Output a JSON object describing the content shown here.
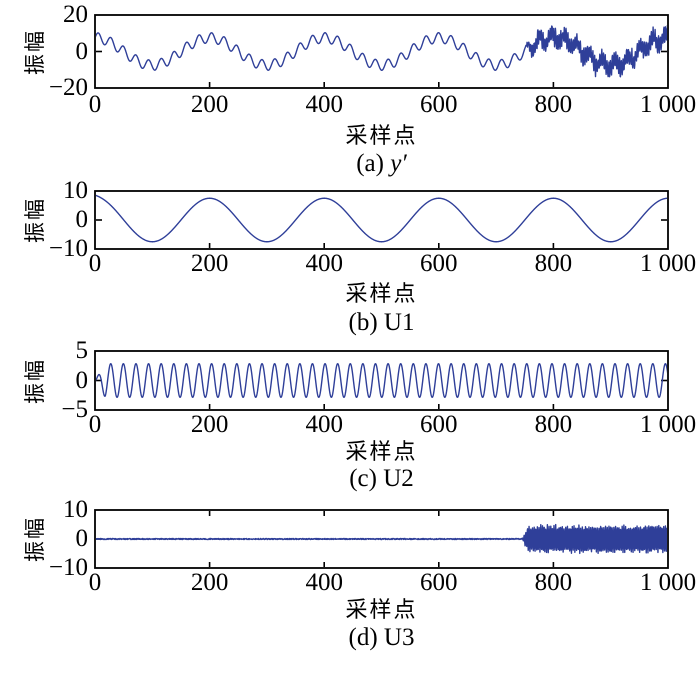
{
  "figure": {
    "background": "#ffffff",
    "axis_color": "#000000",
    "line_color": "#2f3f99",
    "text_color": "#000000"
  },
  "chart_data": [
    {
      "type": "line",
      "caption_prefix": "(a)",
      "caption_symbol": "y′",
      "caption_symbol_italic": true,
      "xlabel": "采样点",
      "ylabel": "振幅",
      "xlim": [
        0,
        1000
      ],
      "ylim": [
        -20,
        20
      ],
      "xticks": [
        0,
        200,
        400,
        600,
        800,
        1000
      ],
      "xtick_labels": [
        "0",
        "200",
        "400",
        "600",
        "800",
        "1 000"
      ],
      "yticks": [
        20,
        0,
        -20
      ],
      "ytick_labels": [
        "20",
        "0",
        "−20"
      ],
      "n_samples": 1000,
      "grid": false,
      "legend": null,
      "description": "Composite signal y' = U1 + U2 + U3: 5-cycle sine (amp≈7.5, period 200) plus ~45-cycle ripple (amp≈2.8, period≈22) plus a noisy high-frequency burst (amp≈4) from sample ≈750 to 1000",
      "signal_components": [
        {
          "kind": "cos",
          "amp": 7.5,
          "period": 200
        },
        {
          "kind": "sin",
          "amp": 2.8,
          "period": 22
        },
        {
          "kind": "burst",
          "amp": 3.8,
          "period": 3.1,
          "start": 752,
          "ramp": 15,
          "jitter": 0.9
        },
        {
          "kind": "noise",
          "amp": 1.1,
          "start": 752
        }
      ],
      "mirror_top_xticks": false
    },
    {
      "type": "line",
      "caption_prefix": "(b)",
      "caption_symbol": "U1",
      "caption_symbol_italic": false,
      "xlabel": "采样点",
      "ylabel": "振幅",
      "xlim": [
        0,
        1000
      ],
      "ylim": [
        -10,
        10
      ],
      "xticks": [
        0,
        200,
        400,
        600,
        800,
        1000
      ],
      "xtick_labels": [
        "0",
        "200",
        "400",
        "600",
        "800",
        "1 000"
      ],
      "yticks": [
        10,
        0,
        -10
      ],
      "ytick_labels": [
        "10",
        "0",
        "−10"
      ],
      "n_samples": 1000,
      "grid": false,
      "legend": null,
      "description": "Low-frequency component U1: smooth 5-cycle cosine, amplitude ≈7.5, period 200 samples, peaks at 0/200/400/600/800/1000",
      "signal_components": [
        {
          "kind": "cos",
          "amp": 7.5,
          "period": 200
        },
        {
          "kind": "edge",
          "amp": 1.1,
          "decay": 15
        }
      ],
      "mirror_top_xticks": false
    },
    {
      "type": "line",
      "caption_prefix": "(c)",
      "caption_symbol": "U2",
      "caption_symbol_italic": false,
      "xlabel": "采样点",
      "ylabel": "振幅",
      "xlim": [
        0,
        1000
      ],
      "ylim": [
        -5,
        5
      ],
      "xticks": [
        0,
        200,
        400,
        600,
        800,
        1000
      ],
      "xtick_labels": [
        "0",
        "200",
        "400",
        "600",
        "800",
        "1 000"
      ],
      "yticks": [
        5,
        0,
        -5
      ],
      "ytick_labels": [
        "5",
        "0",
        "−5"
      ],
      "n_samples": 1000,
      "grid": false,
      "legend": null,
      "description": "Mid-frequency component U2: constant sine, amplitude ≈2.85, period ≈22 samples (~45 cycles), short amplitude ramp-in at the start",
      "signal_components": [
        {
          "kind": "sin",
          "amp": 2.85,
          "period": 22,
          "ramp_in": 18
        }
      ],
      "mirror_top_xticks": false
    },
    {
      "type": "line",
      "caption_prefix": "(d)",
      "caption_symbol": "U3",
      "caption_symbol_italic": false,
      "xlabel": "采样点",
      "ylabel": "振幅",
      "xlim": [
        0,
        1000
      ],
      "ylim": [
        -10,
        10
      ],
      "xticks": [
        0,
        200,
        400,
        600,
        800,
        1000
      ],
      "xtick_labels": [
        "0",
        "200",
        "400",
        "600",
        "800",
        "1 000"
      ],
      "yticks": [
        10,
        0,
        -10
      ],
      "ytick_labels": [
        "10",
        "0",
        "−10"
      ],
      "n_samples": 1000,
      "grid": false,
      "legend": null,
      "description": "High-frequency component U3: near-zero noise floor (≈±0.2) until sample ≈745, then dense oscillation band of amplitude ≈±4 out to 1000",
      "signal_components": [
        {
          "kind": "noise",
          "amp": 0.18
        },
        {
          "kind": "burst",
          "amp": 4.2,
          "period": 2.9,
          "start": 745,
          "ramp": 12,
          "jitter": 0.35
        }
      ],
      "mirror_top_xticks": true
    }
  ]
}
